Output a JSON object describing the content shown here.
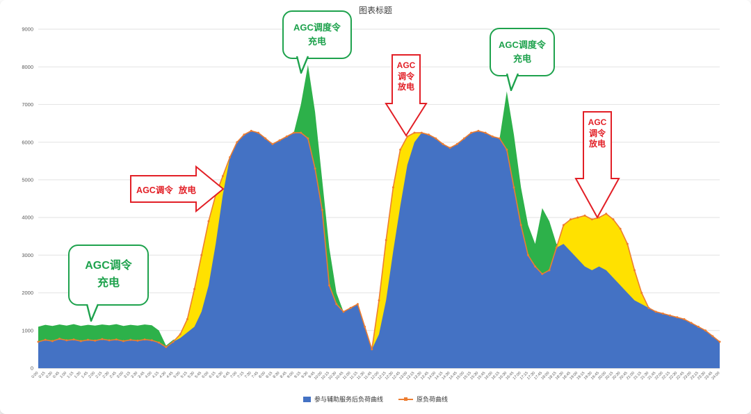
{
  "title": "图表标题",
  "colors": {
    "green_accent": "#1ea24d",
    "red_accent": "#e21f26",
    "after_area": "#4472c4",
    "original_line": "#ed7d31",
    "charge_fill": "#2db14a",
    "discharge_fill": "#ffe100",
    "grid": "#e2e2e2",
    "axis_text": "#595959"
  },
  "legend": {
    "items": [
      {
        "label": "参与辅助服务后负荷曲线",
        "swatch": "blue-area"
      },
      {
        "label": "原负荷曲线",
        "swatch": "orange-line"
      }
    ]
  },
  "annotations": {
    "charge_callout_1": {
      "line1": "AGC调令",
      "line2": "充电"
    },
    "discharge_arrow_1": {
      "part1": "AGC调令",
      "part2": "放电"
    },
    "charge_callout_2": {
      "line1": "AGC调度令",
      "line2": "充电"
    },
    "discharge_arrow_2": {
      "line1": "AGC",
      "line2": "调令",
      "line3": "放电"
    },
    "charge_callout_3": {
      "line1": "AGC调度令",
      "line2": "充电"
    },
    "discharge_arrow_3": {
      "line1": "AGC",
      "line2": "调令",
      "line3": "放电"
    }
  },
  "chart_data": {
    "type": "area",
    "title": "图表标题",
    "ylim": [
      0,
      9000
    ],
    "y_ticks": [
      0,
      1000,
      2000,
      3000,
      4000,
      5000,
      6000,
      7000,
      8000,
      9000
    ],
    "grid": true,
    "legend_position": "bottom",
    "x": [
      "0:00",
      "0:15",
      "0:30",
      "0:45",
      "1:00",
      "1:15",
      "1:30",
      "1:45",
      "2:00",
      "2:15",
      "2:30",
      "2:45",
      "3:00",
      "3:15",
      "3:30",
      "3:45",
      "4:00",
      "4:15",
      "4:30",
      "4:45",
      "5:00",
      "5:15",
      "5:30",
      "5:45",
      "6:00",
      "6:15",
      "6:30",
      "6:45",
      "7:00",
      "7:15",
      "7:30",
      "7:45",
      "8:00",
      "8:15",
      "8:30",
      "8:45",
      "9:00",
      "9:15",
      "9:30",
      "9:45",
      "10:00",
      "10:15",
      "10:30",
      "10:45",
      "11:00",
      "11:15",
      "11:30",
      "11:45",
      "12:00",
      "12:15",
      "12:30",
      "12:45",
      "13:00",
      "13:15",
      "13:30",
      "13:45",
      "14:00",
      "14:15",
      "14:30",
      "14:45",
      "15:00",
      "15:15",
      "15:30",
      "15:45",
      "16:00",
      "16:15",
      "16:30",
      "16:45",
      "17:00",
      "17:15",
      "17:30",
      "17:45",
      "18:00",
      "18:15",
      "18:30",
      "18:45",
      "19:00",
      "19:15",
      "19:30",
      "19:45",
      "20:00",
      "20:15",
      "20:30",
      "20:45",
      "21:00",
      "21:15",
      "21:30",
      "21:45",
      "22:00",
      "22:15",
      "22:30",
      "22:45",
      "23:00",
      "23:15",
      "23:30",
      "23:45",
      "24:00"
    ],
    "series": [
      {
        "name": "参与辅助服务后负荷曲线",
        "role": "load-after-ancillary-services",
        "color": "#4472c4",
        "values": [
          1100,
          1150,
          1120,
          1160,
          1130,
          1170,
          1120,
          1150,
          1130,
          1160,
          1140,
          1170,
          1120,
          1150,
          1130,
          1160,
          1140,
          1000,
          600,
          750,
          800,
          950,
          1100,
          1500,
          2200,
          3300,
          4600,
          5600,
          6000,
          6200,
          6300,
          6250,
          6100,
          5950,
          6050,
          6150,
          6250,
          7000,
          8050,
          6800,
          5000,
          3200,
          2000,
          1500,
          1600,
          1700,
          1100,
          500,
          900,
          1800,
          3100,
          4300,
          5400,
          6000,
          6250,
          6200,
          6100,
          5950,
          5850,
          5950,
          6100,
          6250,
          6300,
          6250,
          6150,
          6100,
          7350,
          6200,
          4800,
          3800,
          3300,
          4250,
          3900,
          3300,
          3300,
          3100,
          2900,
          2700,
          2600,
          2700,
          2600,
          2400,
          2200,
          2000,
          1800,
          1700,
          1600,
          1500,
          1450,
          1400,
          1350,
          1300,
          1200,
          1100,
          1000,
          850,
          700
        ]
      },
      {
        "name": "原负荷曲线",
        "role": "original-load",
        "color": "#ed7d31",
        "values": [
          700,
          750,
          720,
          780,
          740,
          760,
          720,
          750,
          730,
          770,
          740,
          760,
          720,
          750,
          730,
          760,
          740,
          680,
          560,
          700,
          900,
          1300,
          2100,
          3000,
          3900,
          4600,
          5100,
          5600,
          6000,
          6200,
          6300,
          6250,
          6100,
          5950,
          6050,
          6150,
          6250,
          6250,
          6100,
          5300,
          4200,
          2200,
          1700,
          1500,
          1600,
          1700,
          1100,
          500,
          1800,
          3400,
          4800,
          5800,
          6150,
          6250,
          6250,
          6200,
          6100,
          5950,
          5850,
          5950,
          6100,
          6250,
          6300,
          6250,
          6150,
          6100,
          5800,
          4800,
          3800,
          3000,
          2700,
          2500,
          2600,
          3200,
          3800,
          3950,
          4000,
          4050,
          3950,
          4000,
          4100,
          3950,
          3700,
          3300,
          2600,
          2000,
          1600,
          1500,
          1450,
          1400,
          1350,
          1300,
          1200,
          1100,
          1000,
          850,
          700
        ]
      }
    ],
    "band_fills": {
      "charge_above_original": "#2db14a",
      "discharge_below_original": "#ffe100"
    }
  }
}
